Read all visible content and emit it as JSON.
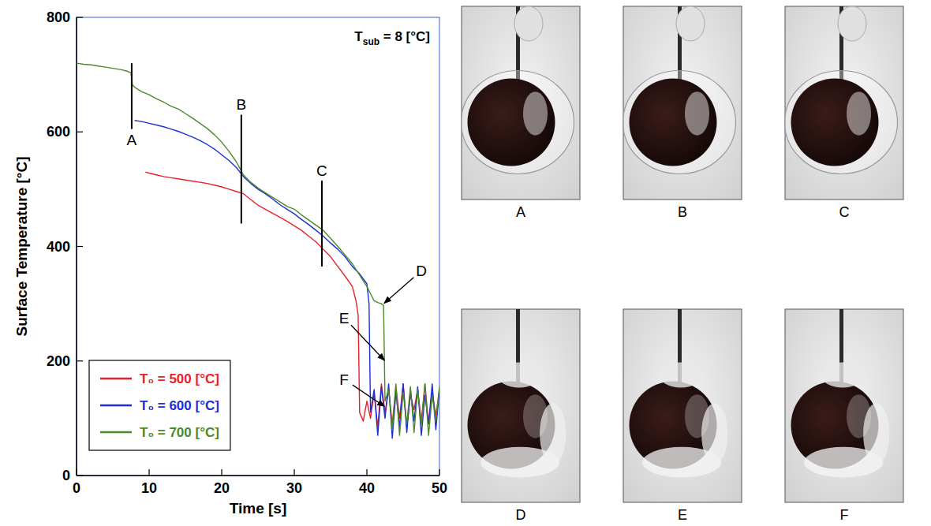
{
  "chart_data": {
    "type": "line",
    "x_label": "Time [s]",
    "y_label": "Surface Temperature [°C]",
    "annotation": {
      "text": "T",
      "subscript": "sub",
      "suffix": " = 8 [°C]"
    },
    "xlim": [
      0,
      50
    ],
    "ylim": [
      0,
      800
    ],
    "xticks": [
      0,
      10,
      20,
      30,
      40,
      50
    ],
    "yticks": [
      0,
      200,
      400,
      600,
      800
    ],
    "grid": false,
    "legend": "lower left",
    "series": [
      {
        "name": "T₀ = 500 [°C]",
        "color": "#e8202a",
        "x": [
          9.5,
          10,
          11,
          12,
          13,
          14,
          15,
          16,
          17,
          18,
          19,
          20,
          21,
          22,
          23,
          24,
          25,
          26,
          27,
          28,
          29,
          30,
          31,
          32,
          33,
          34,
          35,
          36,
          37,
          38,
          38.5,
          38.8,
          39,
          39.5,
          40,
          40.5,
          41,
          41.5,
          42,
          42.5,
          43,
          43.5,
          44,
          44.5,
          45,
          45.5,
          46,
          46.5,
          47,
          47.5,
          48,
          48.5,
          49,
          49.5,
          50
        ],
        "values": [
          530,
          528,
          525,
          522,
          520,
          518,
          516,
          514,
          512,
          510,
          507,
          504,
          500,
          496,
          492,
          482,
          472,
          465,
          458,
          451,
          444,
          436,
          428,
          418,
          408,
          395,
          382,
          365,
          348,
          330,
          305,
          280,
          110,
          95,
          130,
          100,
          145,
          85,
          160,
          110,
          150,
          90,
          155,
          100,
          160,
          85,
          140,
          115,
          150,
          95,
          160,
          90,
          145,
          105,
          150
        ]
      },
      {
        "name": "T₀ = 600 [°C]",
        "color": "#1a2fd6",
        "x": [
          8,
          9,
          10,
          11,
          12,
          13,
          14,
          15,
          16,
          17,
          18,
          19,
          20,
          21,
          22,
          23,
          24,
          25,
          26,
          27,
          28,
          29,
          30,
          31,
          32,
          33,
          34,
          35,
          36,
          37,
          38,
          39,
          40,
          40.3,
          40.5,
          41,
          41.5,
          42,
          42.5,
          43,
          43.5,
          44,
          44.5,
          45,
          45.5,
          46,
          46.5,
          47,
          47.5,
          48,
          48.5,
          49,
          49.5,
          50
        ],
        "values": [
          620,
          618,
          615,
          612,
          609,
          605,
          601,
          596,
          591,
          585,
          578,
          570,
          560,
          550,
          538,
          522,
          510,
          500,
          492,
          483,
          473,
          465,
          457,
          447,
          438,
          428,
          418,
          406,
          395,
          382,
          365,
          352,
          335,
          300,
          110,
          150,
          70,
          155,
          100,
          160,
          65,
          145,
          85,
          160,
          75,
          150,
          95,
          155,
          70,
          140,
          90,
          160,
          80,
          150
        ]
      },
      {
        "name": "T₀ = 700 [°C]",
        "color": "#4a8a2a",
        "x": [
          0,
          1,
          2,
          3,
          4,
          5,
          6,
          7,
          7.5,
          7.7,
          8,
          9,
          10,
          11,
          12,
          13,
          14,
          15,
          16,
          17,
          18,
          19,
          20,
          21,
          22,
          23,
          24,
          25,
          26,
          27,
          28,
          29,
          30,
          31,
          32,
          33,
          34,
          35,
          36,
          37,
          38,
          39,
          40,
          41,
          41.5,
          42,
          42.3,
          42.5,
          43,
          43.5,
          44,
          44.5,
          45,
          45.5,
          46,
          46.5,
          47,
          47.5,
          48,
          48.5,
          49,
          49.5,
          50
        ],
        "values": [
          720,
          718,
          717,
          715,
          713,
          711,
          709,
          706,
          703,
          682,
          678,
          670,
          665,
          658,
          652,
          645,
          640,
          632,
          624,
          615,
          606,
          595,
          582,
          566,
          548,
          525,
          512,
          502,
          494,
          486,
          478,
          470,
          465,
          455,
          446,
          437,
          428,
          414,
          400,
          385,
          370,
          350,
          330,
          305,
          302,
          300,
          297,
          130,
          150,
          80,
          160,
          70,
          145,
          90,
          155,
          75,
          150,
          85,
          160,
          70,
          140,
          95,
          155
        ]
      }
    ],
    "markers": [
      {
        "label": "A",
        "x": 7.6,
        "ymin": 605,
        "ymax": 720
      },
      {
        "label": "B",
        "x": 22.7,
        "ymin": 440,
        "ymax": 630
      },
      {
        "label": "C",
        "x": 33.8,
        "ymin": 365,
        "ymax": 515
      }
    ],
    "pointers": [
      {
        "label": "D",
        "x": 42.3,
        "y": 300
      },
      {
        "label": "E",
        "x": 42.5,
        "y": 200
      },
      {
        "label": "F",
        "x": 42.5,
        "y": 120
      }
    ]
  },
  "photo_labels": [
    "A",
    "B",
    "C",
    "D",
    "E",
    "F"
  ]
}
